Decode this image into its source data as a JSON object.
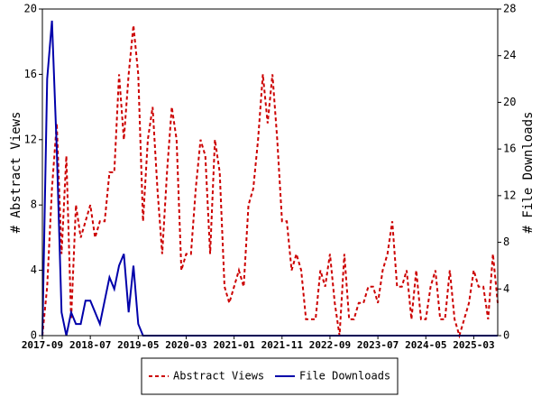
{
  "chart_data": {
    "type": "line",
    "x": [
      "2017-09",
      "2017-10",
      "2017-11",
      "2017-12",
      "2018-01",
      "2018-02",
      "2018-03",
      "2018-04",
      "2018-05",
      "2018-06",
      "2018-07",
      "2018-08",
      "2018-09",
      "2018-10",
      "2018-11",
      "2018-12",
      "2019-01",
      "2019-02",
      "2019-03",
      "2019-04",
      "2019-05",
      "2019-06",
      "2019-07",
      "2019-08",
      "2019-09",
      "2019-10",
      "2019-11",
      "2019-12",
      "2020-01",
      "2020-02",
      "2020-03",
      "2020-04",
      "2020-05",
      "2020-06",
      "2020-07",
      "2020-08",
      "2020-09",
      "2020-10",
      "2020-11",
      "2020-12",
      "2021-01",
      "2021-02",
      "2021-03",
      "2021-04",
      "2021-05",
      "2021-06",
      "2021-07",
      "2021-08",
      "2021-09",
      "2021-10",
      "2021-11",
      "2021-12",
      "2022-01",
      "2022-02",
      "2022-03",
      "2022-04",
      "2022-05",
      "2022-06",
      "2022-07",
      "2022-08",
      "2022-09",
      "2022-10",
      "2022-11",
      "2022-12",
      "2023-01",
      "2023-02",
      "2023-03",
      "2023-04",
      "2023-05",
      "2023-06",
      "2023-07",
      "2023-08",
      "2023-09",
      "2023-10",
      "2023-11",
      "2023-12",
      "2024-01",
      "2024-02",
      "2024-03",
      "2024-04",
      "2024-05",
      "2024-06",
      "2024-07",
      "2024-08",
      "2024-09",
      "2024-10",
      "2024-11",
      "2024-12",
      "2025-01",
      "2025-02",
      "2025-03",
      "2025-04",
      "2025-05",
      "2025-06",
      "2025-07",
      "2025-08"
    ],
    "xticks": [
      "2017-09",
      "2018-07",
      "2019-05",
      "2020-03",
      "2021-01",
      "2021-11",
      "2022-09",
      "2023-07",
      "2024-05",
      "2025-03"
    ],
    "ylabel": "# Abstract Views",
    "y2label": "# File Downloads",
    "ylim": [
      0,
      20
    ],
    "yticks": [
      0,
      4,
      8,
      12,
      16,
      20
    ],
    "y2lim": [
      0,
      28
    ],
    "y2ticks": [
      0,
      4,
      8,
      12,
      16,
      20,
      24,
      28
    ],
    "legend": "bottom",
    "series": [
      {
        "name": "Abstract Views",
        "color": "#cc0000",
        "dashed": true,
        "values": [
          0,
          3,
          9,
          13,
          5,
          11,
          1,
          8,
          6,
          7,
          8,
          6,
          7,
          7,
          10,
          10,
          16,
          12,
          16,
          19,
          16,
          7,
          12,
          14,
          9,
          5,
          10,
          14,
          12,
          4,
          5,
          5,
          9,
          12,
          11,
          5,
          12,
          10,
          3,
          2,
          3,
          4,
          3,
          8,
          9,
          12,
          16,
          13,
          16,
          12,
          7,
          7,
          4,
          5,
          4,
          1,
          1,
          1,
          4,
          3,
          5,
          2,
          0,
          5,
          1,
          1,
          2,
          2,
          3,
          3,
          2,
          4,
          5,
          7,
          3,
          3,
          4,
          1,
          4,
          1,
          1,
          3,
          4,
          1,
          1,
          4,
          1,
          0,
          1,
          2,
          4,
          3,
          3,
          1,
          5,
          2
        ]
      },
      {
        "name": "File Downloads",
        "color": "#0000aa",
        "axis": "y2",
        "dashed": false,
        "values": [
          0,
          22,
          27,
          16,
          2,
          0,
          2,
          1,
          1,
          3,
          3,
          2,
          1,
          3,
          5,
          4,
          6,
          7,
          2,
          6,
          1,
          0,
          0,
          0,
          0,
          0,
          0,
          0,
          0,
          0,
          0,
          0,
          0,
          0,
          0,
          0,
          0,
          0,
          0,
          0,
          0,
          0,
          0,
          0,
          0,
          0,
          0,
          0,
          0,
          0,
          0,
          0,
          0,
          0,
          0,
          0,
          0,
          0,
          0,
          0,
          0,
          0,
          0,
          0,
          0,
          0,
          0,
          0,
          0,
          0,
          0,
          0,
          0,
          0,
          0,
          0,
          0,
          0,
          0,
          0,
          0,
          0,
          0,
          0,
          0,
          0,
          0,
          0,
          0,
          0,
          0,
          0,
          0,
          0,
          0,
          0
        ]
      }
    ]
  }
}
